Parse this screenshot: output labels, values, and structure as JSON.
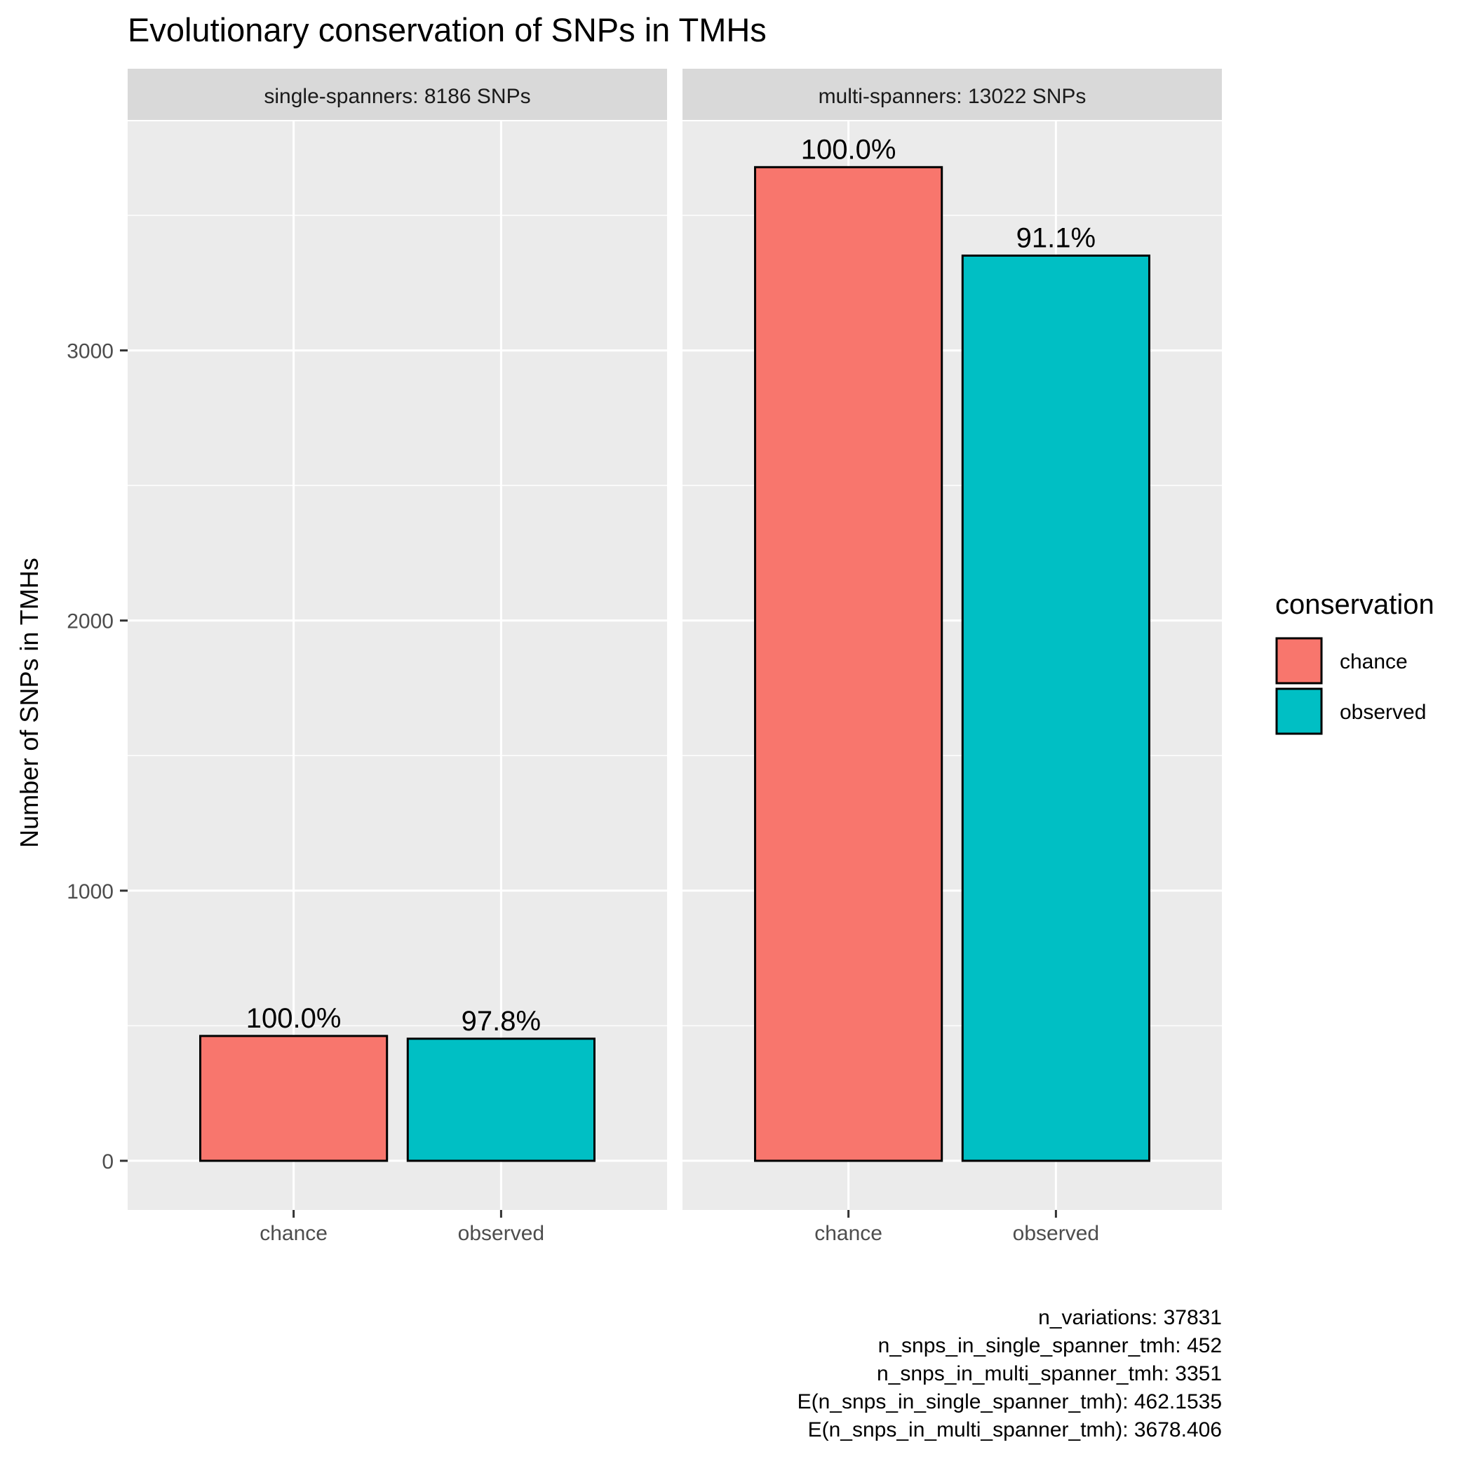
{
  "colors": {
    "chance": "#F8766D",
    "observed": "#00BFC4",
    "panel_bg": "#EBEBEB",
    "strip_bg": "#D9D9D9",
    "grid": "#FFFFFF",
    "bar_border": "#000000",
    "axis_text": "#4D4D4D"
  },
  "chart_data": {
    "type": "bar",
    "title": "Evolutionary conservation of SNPs in TMHs",
    "xlabel": "",
    "ylabel": "Number of SNPs in TMHs",
    "ylim": [
      -182,
      3848
    ],
    "y_ticks": [
      0,
      1000,
      2000,
      3000
    ],
    "categories": [
      "chance",
      "observed"
    ],
    "grid": true,
    "facets": [
      {
        "strip_label": "single-spanners: 8186 SNPs",
        "values": [
          462.1535,
          452
        ],
        "bar_labels": [
          "100.0%",
          "97.8%"
        ]
      },
      {
        "strip_label": "multi-spanners: 13022 SNPs",
        "values": [
          3678.406,
          3351
        ],
        "bar_labels": [
          "100.0%",
          "91.1%"
        ]
      }
    ],
    "legend": {
      "title": "conservation",
      "entries": [
        "chance",
        "observed"
      ],
      "position": "right"
    },
    "caption_lines": [
      "n_variations: 37831",
      "n_snps_in_single_spanner_tmh: 452",
      "n_snps_in_multi_spanner_tmh: 3351",
      "E(n_snps_in_single_spanner_tmh): 462.1535",
      "E(n_snps_in_multi_spanner_tmh): 3678.406"
    ]
  }
}
